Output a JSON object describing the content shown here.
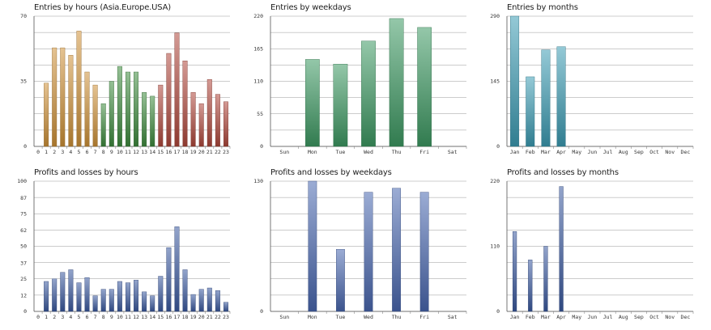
{
  "chart_data": [
    {
      "type": "bar",
      "title": "Entries by hours (Asia.Europe.USA)",
      "categories": [
        "0",
        "1",
        "2",
        "3",
        "4",
        "5",
        "6",
        "7",
        "8",
        "9",
        "10",
        "11",
        "12",
        "13",
        "14",
        "15",
        "16",
        "17",
        "18",
        "19",
        "20",
        "21",
        "22",
        "23"
      ],
      "values": [
        0,
        34,
        53,
        53,
        49,
        62,
        40,
        33,
        23,
        35,
        43,
        40,
        40,
        29,
        27,
        33,
        50,
        61,
        46,
        29,
        23,
        36,
        28,
        24
      ],
      "ylim": [
        0,
        70
      ],
      "yticks": [
        "0",
        "35",
        "70"
      ],
      "bar_colors": [
        "#d09238",
        "#d09238",
        "#d09238",
        "#d09238",
        "#d09238",
        "#d09238",
        "#d09238",
        "#d09238",
        "#3e8c3e",
        "#3e8c3e",
        "#3e8c3e",
        "#3e8c3e",
        "#3e8c3e",
        "#3e8c3e",
        "#3e8c3e",
        "#b0483c",
        "#b0483c",
        "#b0483c",
        "#b0483c",
        "#b0483c",
        "#b0483c",
        "#b0483c",
        "#b0483c",
        "#b0483c"
      ],
      "grid": true
    },
    {
      "type": "bar",
      "title": "Entries by weekdays",
      "categories": [
        "Sun",
        "Mon",
        "Tue",
        "Wed",
        "Thu",
        "Fri",
        "Sat"
      ],
      "values": [
        0,
        147,
        139,
        178,
        216,
        201,
        0
      ],
      "ylim": [
        0,
        220
      ],
      "yticks": [
        "0",
        "55",
        "110",
        "165",
        "220"
      ],
      "bar_colors": [
        "#3d9a63"
      ],
      "grid": true
    },
    {
      "type": "bar",
      "title": "Entries by months",
      "categories": [
        "Jan",
        "Feb",
        "Mar",
        "Apr",
        "May",
        "Jun",
        "Jul",
        "Aug",
        "Sep",
        "Oct",
        "Nov",
        "Dec"
      ],
      "values": [
        290,
        155,
        215,
        222,
        0,
        0,
        0,
        0,
        0,
        0,
        0,
        0
      ],
      "ylim": [
        0,
        290
      ],
      "yticks": [
        "0",
        "145",
        "290"
      ],
      "bar_colors": [
        "#3c9cb4"
      ],
      "grid": true
    },
    {
      "type": "bar",
      "title": "Profits and losses by hours",
      "categories": [
        "0",
        "1",
        "2",
        "3",
        "4",
        "5",
        "6",
        "7",
        "8",
        "9",
        "10",
        "11",
        "12",
        "13",
        "14",
        "15",
        "16",
        "17",
        "18",
        "19",
        "20",
        "21",
        "22",
        "23"
      ],
      "values": [
        0,
        23,
        25,
        30,
        32,
        22,
        26,
        12,
        17,
        17,
        23,
        22,
        24,
        15,
        12,
        27,
        49,
        65,
        32,
        13,
        17,
        18,
        16,
        7
      ],
      "ylim": [
        0,
        100
      ],
      "yticks": [
        "0",
        "12",
        "25",
        "37",
        "50",
        "62",
        "75",
        "87",
        "100"
      ],
      "bar_colors": [
        "#3b5aa0"
      ],
      "grid": true
    },
    {
      "type": "bar",
      "title": "Profits and losses by weekdays",
      "categories": [
        "Sun",
        "Mon",
        "Tue",
        "Wed",
        "Thu",
        "Fri",
        "Sat"
      ],
      "values": [
        0,
        130,
        62,
        119,
        123,
        119,
        0
      ],
      "ylim": [
        0,
        130
      ],
      "yticks": [
        "0",
        "130"
      ],
      "bar_colors": [
        "#4a68b0"
      ],
      "grid": true
    },
    {
      "type": "bar",
      "title": "Profits and losses by months",
      "categories": [
        "Jan",
        "Feb",
        "Mar",
        "Apr",
        "May",
        "Jun",
        "Jul",
        "Aug",
        "Sep",
        "Oct",
        "Nov",
        "Dec"
      ],
      "values": [
        135,
        87,
        110,
        211,
        0,
        0,
        0,
        0,
        0,
        0,
        0,
        0
      ],
      "ylim": [
        0,
        220
      ],
      "yticks": [
        "0",
        "110",
        "220"
      ],
      "bar_colors": [
        "#3b5aa0"
      ],
      "grid": true
    }
  ]
}
